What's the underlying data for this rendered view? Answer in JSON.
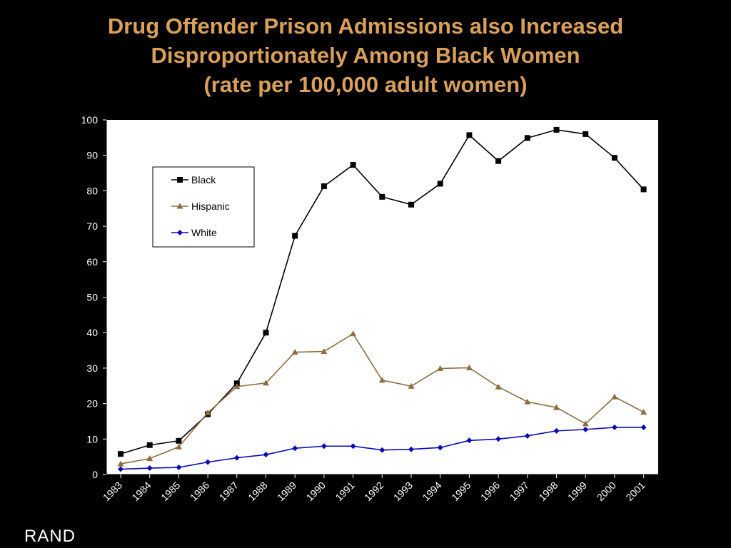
{
  "slide": {
    "title_lines": [
      "Drug Offender Prison Admissions also Increased",
      "Disproportionately Among Black Women",
      "(rate per 100,000 adult women)"
    ],
    "brand": "RAND",
    "colors": {
      "background": "#000000",
      "title": "#d9a05b",
      "plot_background": "#ffffff"
    }
  },
  "chart_data": {
    "type": "line",
    "title": "Drug Offender Prison Admissions also Increased Disproportionately Among Black Women (rate per 100,000 adult women)",
    "xlabel": "",
    "ylabel": "",
    "x": [
      "1983",
      "1984",
      "1985",
      "1986",
      "1987",
      "1988",
      "1989",
      "1990",
      "1991",
      "1992",
      "1993",
      "1994",
      "1995",
      "1996",
      "1997",
      "1998",
      "1999",
      "2000",
      "2001"
    ],
    "ylim": [
      0,
      100
    ],
    "yticks": [
      0,
      10,
      20,
      30,
      40,
      50,
      60,
      70,
      80,
      90,
      100
    ],
    "grid": false,
    "legend_position": "top-left",
    "series": [
      {
        "name": "Black",
        "color": "#000000",
        "marker": "square",
        "values": [
          5.8,
          8.3,
          9.5,
          17.0,
          25.7,
          40.0,
          67.3,
          81.3,
          87.3,
          78.3,
          76.1,
          82.0,
          95.7,
          88.4,
          94.9,
          97.2,
          96.0,
          89.3,
          80.4
        ]
      },
      {
        "name": "Hispanic",
        "color": "#8b6d3e",
        "marker": "triangle",
        "values": [
          3.0,
          4.5,
          7.8,
          17.4,
          24.8,
          25.8,
          34.5,
          34.7,
          39.7,
          26.6,
          24.9,
          29.9,
          30.1,
          24.7,
          20.5,
          18.9,
          14.3,
          21.9,
          17.6
        ]
      },
      {
        "name": "White",
        "color": "#0a0ab4",
        "marker": "diamond",
        "values": [
          1.5,
          1.8,
          2.0,
          3.5,
          4.7,
          5.6,
          7.4,
          8.0,
          8.0,
          6.9,
          7.1,
          7.6,
          9.6,
          10.0,
          10.9,
          12.3,
          12.7,
          13.3,
          13.3
        ]
      }
    ]
  }
}
